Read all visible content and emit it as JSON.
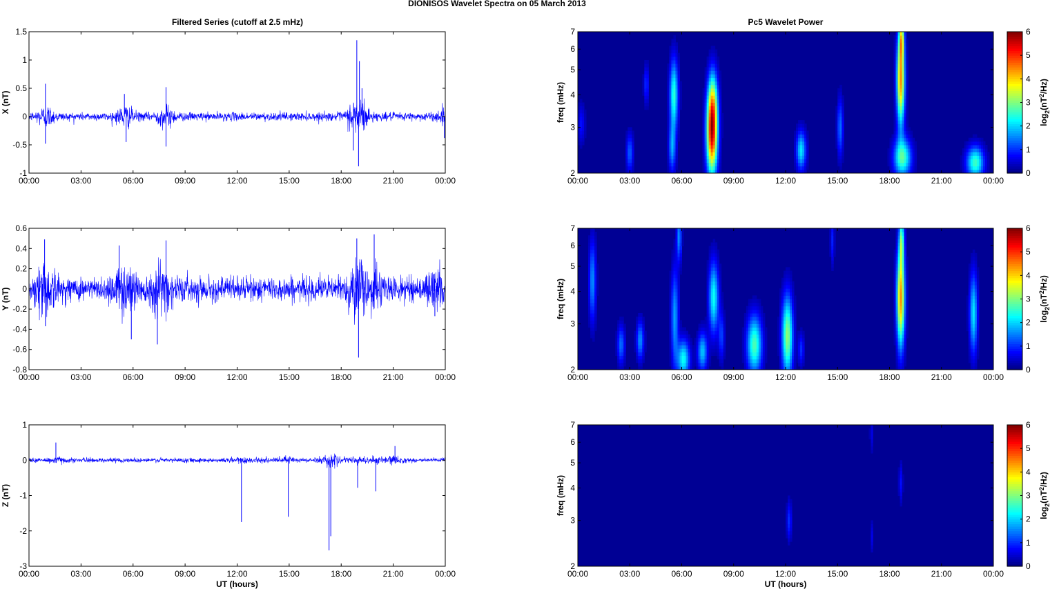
{
  "page": {
    "title": "DIONISOS Wavelet Spectra on 05 March     2013",
    "left_title": "Filtered Series (cutoff at 2.5 mHz)",
    "right_title": "Pc5 Wavelet Power"
  },
  "chart_data": [
    {
      "type": "line",
      "component": "X",
      "ylabel": "X (nT)",
      "xlabel": "",
      "x_ticks": [
        "00:00",
        "03:00",
        "06:00",
        "09:00",
        "12:00",
        "15:00",
        "18:00",
        "21:00",
        "00:00"
      ],
      "xlim_hours": [
        0,
        24
      ],
      "ylim": [
        -1,
        1.5
      ],
      "y_ticks": [
        "-1",
        "-0.5",
        "0",
        "0.5",
        "1",
        "1.5"
      ],
      "series_color": "#0000ff",
      "baseline_amplitude": 0.08,
      "events": [
        {
          "t": 0.95,
          "y": 0.58
        },
        {
          "t": 0.95,
          "y": -0.48
        },
        {
          "t": 5.5,
          "y": 0.4
        },
        {
          "t": 5.6,
          "y": -0.45
        },
        {
          "t": 7.9,
          "y": 0.52
        },
        {
          "t": 7.9,
          "y": -0.53
        },
        {
          "t": 18.9,
          "y": 1.35
        },
        {
          "t": 19.05,
          "y": 0.98
        },
        {
          "t": 19.0,
          "y": -0.88
        },
        {
          "t": 18.7,
          "y": -0.6
        },
        {
          "t": 19.2,
          "y": 0.5
        },
        {
          "t": 23.95,
          "y": -0.38
        }
      ]
    },
    {
      "type": "line",
      "component": "Y",
      "ylabel": "Y (nT)",
      "xlabel": "",
      "x_ticks": [
        "00:00",
        "03:00",
        "06:00",
        "09:00",
        "12:00",
        "15:00",
        "18:00",
        "21:00",
        "00:00"
      ],
      "xlim_hours": [
        0,
        24
      ],
      "ylim": [
        -0.8,
        0.6
      ],
      "y_ticks": [
        "-0.8",
        "-0.6",
        "-0.4",
        "-0.2",
        "0",
        "0.2",
        "0.4",
        "0.6"
      ],
      "series_color": "#0000ff",
      "baseline_amplitude": 0.13,
      "events": [
        {
          "t": 0.9,
          "y": 0.49
        },
        {
          "t": 0.95,
          "y": -0.37
        },
        {
          "t": 5.2,
          "y": 0.43
        },
        {
          "t": 5.9,
          "y": -0.5
        },
        {
          "t": 7.4,
          "y": -0.55
        },
        {
          "t": 7.9,
          "y": 0.48
        },
        {
          "t": 18.9,
          "y": 0.5
        },
        {
          "t": 19.0,
          "y": -0.68
        },
        {
          "t": 19.9,
          "y": 0.54
        },
        {
          "t": 23.4,
          "y": -0.27
        }
      ]
    },
    {
      "type": "line",
      "component": "Z",
      "ylabel": "Z (nT)",
      "xlabel": "UT (hours)",
      "x_ticks": [
        "00:00",
        "03:00",
        "06:00",
        "09:00",
        "12:00",
        "15:00",
        "18:00",
        "21:00",
        "00:00"
      ],
      "xlim_hours": [
        0,
        24
      ],
      "ylim": [
        -3,
        1
      ],
      "y_ticks": [
        "-3",
        "-2",
        "-1",
        "0",
        "1"
      ],
      "series_color": "#0000ff",
      "baseline_amplitude": 0.07,
      "events": [
        {
          "t": 1.55,
          "y": 0.5
        },
        {
          "t": 12.25,
          "y": -1.75
        },
        {
          "t": 14.95,
          "y": -1.6
        },
        {
          "t": 17.3,
          "y": -2.55
        },
        {
          "t": 17.4,
          "y": -2.15
        },
        {
          "t": 18.95,
          "y": -0.78
        },
        {
          "t": 20.0,
          "y": -0.88
        },
        {
          "t": 21.1,
          "y": 0.4
        }
      ]
    },
    {
      "type": "heatmap",
      "component": "X",
      "ylabel": "freq (mHz)",
      "xlabel": "",
      "x_ticks": [
        "00:00",
        "03:00",
        "06:00",
        "09:00",
        "12:00",
        "15:00",
        "18:00",
        "21:00",
        "00:00"
      ],
      "y_ticks": [
        "2",
        "3",
        "4",
        "5",
        "6",
        "7"
      ],
      "yscale": "log",
      "ylim_mhz": [
        2,
        7
      ],
      "colorbar_label": "log2(nT2/Hz)",
      "colorbar_ticks": [
        "0",
        "1",
        "2",
        "3",
        "4",
        "5",
        "6"
      ],
      "clim": [
        0,
        6
      ],
      "colormap": "jet",
      "blobs": [
        {
          "t": 7.75,
          "f": 2.8,
          "v": 5.0,
          "dt": 0.22,
          "df": 0.25
        },
        {
          "t": 7.8,
          "f": 3.8,
          "v": 2.2,
          "dt": 0.2,
          "df": 0.2
        },
        {
          "t": 5.55,
          "f": 4.0,
          "v": 2.4,
          "dt": 0.17,
          "df": 0.22
        },
        {
          "t": 5.45,
          "f": 2.5,
          "v": 1.5,
          "dt": 0.14,
          "df": 0.15
        },
        {
          "t": 18.65,
          "f": 4.6,
          "v": 4.3,
          "dt": 0.16,
          "df": 0.28
        },
        {
          "t": 18.7,
          "f": 6.6,
          "v": 2.6,
          "dt": 0.1,
          "df": 0.12
        },
        {
          "t": 18.75,
          "f": 2.3,
          "v": 2.6,
          "dt": 0.35,
          "df": 0.12
        },
        {
          "t": 12.9,
          "f": 2.45,
          "v": 2.0,
          "dt": 0.2,
          "df": 0.12
        },
        {
          "t": 22.95,
          "f": 2.2,
          "v": 2.5,
          "dt": 0.35,
          "df": 0.1
        },
        {
          "t": 15.15,
          "f": 3.0,
          "v": 1.3,
          "dt": 0.12,
          "df": 0.18
        },
        {
          "t": 3.0,
          "f": 2.4,
          "v": 1.2,
          "dt": 0.14,
          "df": 0.12
        },
        {
          "t": 3.95,
          "f": 4.4,
          "v": 0.9,
          "dt": 0.1,
          "df": 0.12
        },
        {
          "t": 0.2,
          "f": 3.1,
          "v": 0.7,
          "dt": 0.15,
          "df": 0.12
        }
      ]
    },
    {
      "type": "heatmap",
      "component": "Y",
      "ylabel": "freq (mHz)",
      "xlabel": "",
      "x_ticks": [
        "00:00",
        "03:00",
        "06:00",
        "09:00",
        "12:00",
        "15:00",
        "18:00",
        "21:00",
        "00:00"
      ],
      "y_ticks": [
        "2",
        "3",
        "4",
        "5",
        "6",
        "7"
      ],
      "yscale": "log",
      "ylim_mhz": [
        2,
        7
      ],
      "colorbar_label": "log2(nT2/Hz)",
      "colorbar_ticks": [
        "0",
        "1",
        "2",
        "3",
        "4",
        "5",
        "6"
      ],
      "clim": [
        0,
        6
      ],
      "colormap": "jet",
      "blobs": [
        {
          "t": 18.65,
          "f": 3.8,
          "v": 4.3,
          "dt": 0.16,
          "df": 0.3
        },
        {
          "t": 18.7,
          "f": 6.3,
          "v": 2.2,
          "dt": 0.1,
          "df": 0.15
        },
        {
          "t": 12.1,
          "f": 2.7,
          "v": 3.0,
          "dt": 0.22,
          "df": 0.25
        },
        {
          "t": 10.2,
          "f": 2.5,
          "v": 2.6,
          "dt": 0.3,
          "df": 0.18
        },
        {
          "t": 7.85,
          "f": 3.8,
          "v": 2.2,
          "dt": 0.2,
          "df": 0.22
        },
        {
          "t": 7.2,
          "f": 2.35,
          "v": 1.8,
          "dt": 0.2,
          "df": 0.12
        },
        {
          "t": 6.1,
          "f": 2.2,
          "v": 2.2,
          "dt": 0.25,
          "df": 0.12
        },
        {
          "t": 5.6,
          "f": 3.2,
          "v": 1.6,
          "dt": 0.15,
          "df": 0.3
        },
        {
          "t": 5.85,
          "f": 6.5,
          "v": 1.5,
          "dt": 0.1,
          "df": 0.15
        },
        {
          "t": 3.6,
          "f": 2.6,
          "v": 1.5,
          "dt": 0.15,
          "df": 0.12
        },
        {
          "t": 2.5,
          "f": 2.5,
          "v": 1.3,
          "dt": 0.15,
          "df": 0.12
        },
        {
          "t": 0.85,
          "f": 4.4,
          "v": 1.5,
          "dt": 0.14,
          "df": 0.25
        },
        {
          "t": 22.85,
          "f": 3.3,
          "v": 2.0,
          "dt": 0.16,
          "df": 0.25
        },
        {
          "t": 8.3,
          "f": 2.7,
          "v": 1.0,
          "dt": 0.12,
          "df": 0.15
        },
        {
          "t": 12.9,
          "f": 2.4,
          "v": 0.9,
          "dt": 0.12,
          "df": 0.1
        },
        {
          "t": 14.7,
          "f": 6.3,
          "v": 0.8,
          "dt": 0.08,
          "df": 0.15
        }
      ]
    },
    {
      "type": "heatmap",
      "component": "Z",
      "ylabel": "freq (mHz)",
      "xlabel": "UT (hours)",
      "x_ticks": [
        "00:00",
        "03:00",
        "06:00",
        "09:00",
        "12:00",
        "15:00",
        "18:00",
        "21:00",
        "00:00"
      ],
      "y_ticks": [
        "2",
        "3",
        "4",
        "5",
        "6",
        "7"
      ],
      "yscale": "log",
      "ylim_mhz": [
        2,
        7
      ],
      "colorbar_label": "log2(nT2/Hz)",
      "colorbar_ticks": [
        "0",
        "1",
        "2",
        "3",
        "4",
        "5",
        "6"
      ],
      "clim": [
        0,
        6
      ],
      "colormap": "jet",
      "blobs": [
        {
          "t": 12.2,
          "f": 3.0,
          "v": 0.9,
          "dt": 0.1,
          "df": 0.12
        },
        {
          "t": 18.65,
          "f": 4.2,
          "v": 0.7,
          "dt": 0.08,
          "df": 0.12
        },
        {
          "t": 16.95,
          "f": 6.5,
          "v": 0.5,
          "dt": 0.06,
          "df": 0.12
        },
        {
          "t": 17.0,
          "f": 2.6,
          "v": 0.5,
          "dt": 0.06,
          "df": 0.1
        }
      ]
    }
  ]
}
